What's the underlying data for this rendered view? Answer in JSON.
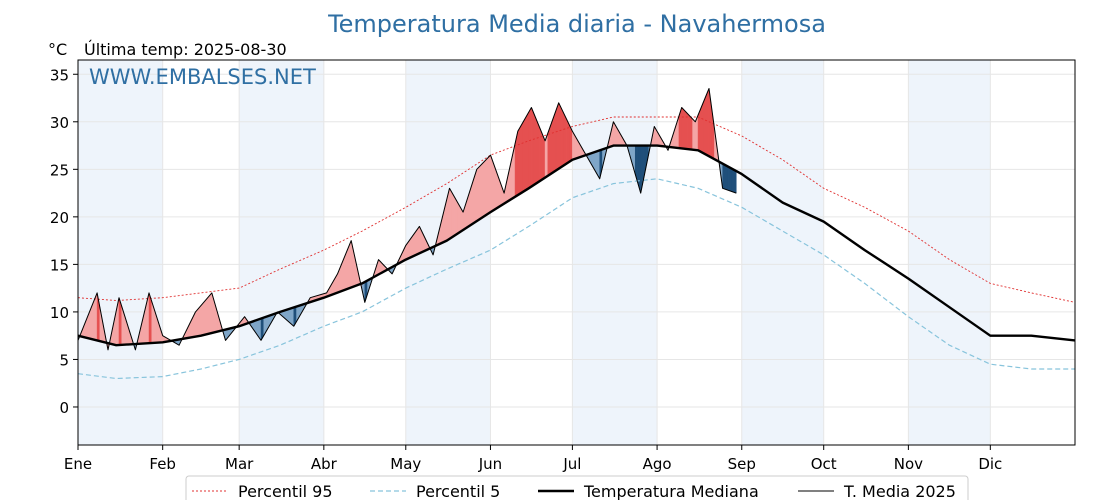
{
  "title": "Temperatura Media diaria - Navahermosa",
  "unit_label": "°C",
  "last_temp_label": "Última temp: 2025-08-30",
  "watermark": "WWW.EMBALSES.NET",
  "colors": {
    "title": "#2f6fa3",
    "p95": "#e03030",
    "p5": "#88c4dc",
    "median": "#000000",
    "media2025": "#000000",
    "above_fill": "#f4a6a6",
    "above_fill_strong": "#e55050",
    "below_fill": "#7fa6c8",
    "below_fill_strong": "#1f4f7a",
    "winter_band": "#eef4fb"
  },
  "legend": [
    {
      "key": "p95",
      "label": "Percentil 95"
    },
    {
      "key": "p5",
      "label": "Percentil 5"
    },
    {
      "key": "median",
      "label": "Temperatura Mediana"
    },
    {
      "key": "media2025",
      "label": "T. Media 2025"
    }
  ],
  "chart_data": {
    "type": "line",
    "x_unit": "day_of_year",
    "xlim": [
      1,
      366
    ],
    "ylim": [
      -4,
      36.5
    ],
    "y_ticks": [
      0,
      5,
      10,
      15,
      20,
      25,
      30,
      35
    ],
    "grid": true,
    "legend_position": "bottom-center",
    "months": [
      {
        "label": "Ene",
        "day": 1
      },
      {
        "label": "Feb",
        "day": 32
      },
      {
        "label": "Mar",
        "day": 60
      },
      {
        "label": "Abr",
        "day": 91
      },
      {
        "label": "May",
        "day": 121
      },
      {
        "label": "Jun",
        "day": 152
      },
      {
        "label": "Jul",
        "day": 182
      },
      {
        "label": "Ago",
        "day": 213
      },
      {
        "label": "Sep",
        "day": 244
      },
      {
        "label": "Oct",
        "day": 274
      },
      {
        "label": "Nov",
        "day": 305
      },
      {
        "label": "Dic",
        "day": 335
      }
    ],
    "series": [
      {
        "name": "Percentil 95",
        "key": "p95",
        "x": [
          1,
          15,
          32,
          46,
          60,
          75,
          91,
          105,
          121,
          136,
          152,
          166,
          182,
          197,
          213,
          228,
          244,
          259,
          274,
          289,
          305,
          320,
          335,
          350,
          366
        ],
        "y": [
          11.5,
          11.2,
          11.5,
          12.0,
          12.5,
          14.5,
          16.5,
          18.5,
          21,
          23.5,
          26.5,
          28,
          29.5,
          30.5,
          30.5,
          30.5,
          28.5,
          26,
          23,
          21,
          18.5,
          15.5,
          13,
          12,
          11
        ]
      },
      {
        "name": "Percentil 5",
        "key": "p5",
        "x": [
          1,
          15,
          32,
          46,
          60,
          75,
          91,
          105,
          121,
          136,
          152,
          166,
          182,
          197,
          213,
          228,
          244,
          259,
          274,
          289,
          305,
          320,
          335,
          350,
          366
        ],
        "y": [
          3.5,
          3.0,
          3.2,
          4.0,
          5.0,
          6.5,
          8.5,
          10.0,
          12.5,
          14.5,
          16.5,
          19.0,
          22.0,
          23.5,
          24.0,
          23.0,
          21.0,
          18.5,
          16.0,
          13.0,
          9.5,
          6.5,
          4.5,
          4.0,
          4.0
        ]
      },
      {
        "name": "Temperatura Mediana",
        "key": "median",
        "x": [
          1,
          15,
          32,
          46,
          60,
          75,
          91,
          105,
          121,
          136,
          152,
          166,
          182,
          197,
          213,
          228,
          244,
          259,
          274,
          289,
          305,
          320,
          335,
          350,
          366
        ],
        "y": [
          7.5,
          6.5,
          6.8,
          7.5,
          8.5,
          10.0,
          11.5,
          13.0,
          15.5,
          17.5,
          20.5,
          23.0,
          26.0,
          27.5,
          27.5,
          27.0,
          24.5,
          21.5,
          19.5,
          16.5,
          13.5,
          10.5,
          7.5,
          7.5,
          7.0
        ]
      },
      {
        "name": "T. Media 2025",
        "key": "media2025",
        "x": [
          1,
          8,
          12,
          16,
          22,
          27,
          32,
          38,
          44,
          50,
          55,
          62,
          68,
          74,
          80,
          86,
          92,
          96,
          101,
          106,
          111,
          116,
          121,
          126,
          131,
          137,
          142,
          147,
          152,
          157,
          162,
          167,
          172,
          177,
          182,
          187,
          192,
          197,
          202,
          207,
          212,
          217,
          222,
          227,
          232,
          237,
          242
        ],
        "y": [
          7.0,
          12.0,
          6.0,
          11.5,
          6.0,
          12.0,
          7.5,
          6.5,
          10.0,
          12.0,
          7.0,
          9.5,
          7.0,
          10.0,
          8.5,
          11.5,
          12.0,
          14.0,
          17.5,
          11.0,
          15.5,
          14.0,
          17.0,
          19.0,
          16.0,
          23.0,
          20.5,
          25.0,
          26.5,
          22.5,
          29.0,
          31.5,
          28.0,
          32.0,
          29.0,
          26.5,
          24.0,
          30.0,
          27.5,
          22.5,
          29.5,
          27.0,
          31.5,
          30.0,
          33.5,
          23.0,
          22.5
        ]
      }
    ]
  }
}
